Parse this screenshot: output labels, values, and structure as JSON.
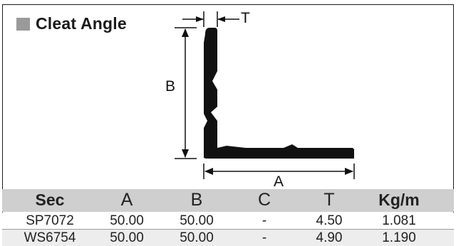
{
  "title": "Cleat Angle",
  "dimension_labels": {
    "a": "A",
    "b": "B",
    "t": "T"
  },
  "table": {
    "headers": [
      "Sec",
      "A",
      "B",
      "C",
      "T",
      "Kg/m"
    ],
    "rows": [
      [
        "SP7072",
        "50.00",
        "50.00",
        "-",
        "4.50",
        "1.081"
      ],
      [
        "WS6754",
        "50.00",
        "50.00",
        "-",
        "4.90",
        "1.190"
      ]
    ]
  },
  "colors": {
    "header_bg": "#cfcfcf",
    "title_square": "#9a9a9a",
    "profile": "#111111",
    "alt_row": "#ededed"
  }
}
